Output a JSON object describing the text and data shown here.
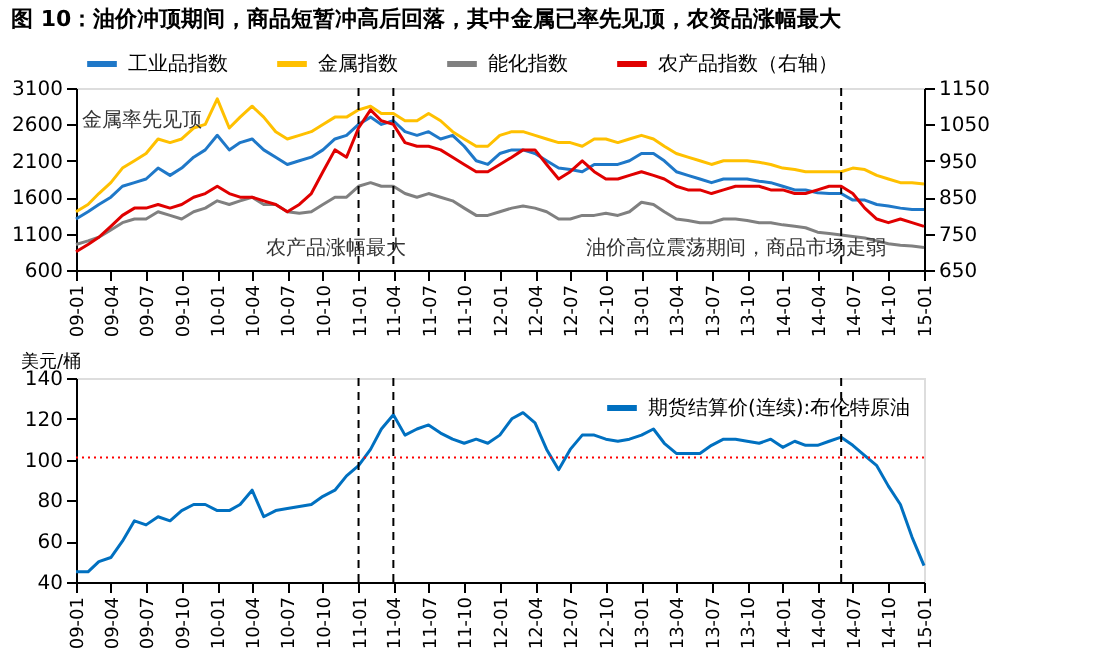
{
  "chart_data": [
    {
      "type": "line",
      "title": "图 10：油价冲顶期间，商品短暂冲高后回落，其中金属已率先见顶，农资品涨幅最大",
      "x": [
        "2009-01",
        "2009-02",
        "2009-03",
        "2009-04",
        "2009-05",
        "2009-06",
        "2009-07",
        "2009-08",
        "2009-09",
        "2009-10",
        "2009-11",
        "2009-12",
        "2010-01",
        "2010-02",
        "2010-03",
        "2010-04",
        "2010-05",
        "2010-06",
        "2010-07",
        "2010-08",
        "2010-09",
        "2010-10",
        "2010-11",
        "2010-12",
        "2011-01",
        "2011-02",
        "2011-03",
        "2011-04",
        "2011-05",
        "2011-06",
        "2011-07",
        "2011-08",
        "2011-09",
        "2011-10",
        "2011-11",
        "2011-12",
        "2012-01",
        "2012-02",
        "2012-03",
        "2012-04",
        "2012-05",
        "2012-06",
        "2012-07",
        "2012-08",
        "2012-09",
        "2012-10",
        "2012-11",
        "2012-12",
        "2013-01",
        "2013-02",
        "2013-03",
        "2013-04",
        "2013-05",
        "2013-06",
        "2013-07",
        "2013-08",
        "2013-09",
        "2013-10",
        "2013-11",
        "2013-12",
        "2014-01",
        "2014-02",
        "2014-03",
        "2014-04",
        "2014-05",
        "2014-06",
        "2014-07",
        "2014-08",
        "2014-09",
        "2014-10",
        "2014-11",
        "2014-12",
        "2015-01"
      ],
      "series": [
        {
          "name": "工业品指数",
          "color": "#1f78c8",
          "values": [
            1300,
            1400,
            1500,
            1600,
            1750,
            1800,
            1850,
            2000,
            1900,
            2000,
            2150,
            2250,
            2450,
            2250,
            2350,
            2400,
            2250,
            2150,
            2050,
            2100,
            2150,
            2250,
            2400,
            2450,
            2600,
            2700,
            2600,
            2650,
            2500,
            2450,
            2500,
            2400,
            2450,
            2300,
            2100,
            2050,
            2200,
            2250,
            2250,
            2200,
            2100,
            2000,
            1980,
            1950,
            2050,
            2050,
            2050,
            2100,
            2200,
            2200,
            2100,
            1950,
            1900,
            1850,
            1800,
            1850,
            1850,
            1850,
            1820,
            1800,
            1750,
            1700,
            1700,
            1660,
            1650,
            1650,
            1560,
            1560,
            1500,
            1480,
            1450,
            1430,
            1430
          ]
        },
        {
          "name": "金属指数",
          "color": "#ffc000",
          "values": [
            1400,
            1500,
            1650,
            1800,
            2000,
            2100,
            2200,
            2400,
            2350,
            2400,
            2550,
            2600,
            2950,
            2550,
            2700,
            2850,
            2700,
            2500,
            2400,
            2450,
            2500,
            2600,
            2700,
            2700,
            2800,
            2850,
            2750,
            2750,
            2650,
            2650,
            2750,
            2650,
            2500,
            2400,
            2300,
            2300,
            2450,
            2500,
            2500,
            2450,
            2400,
            2350,
            2350,
            2300,
            2400,
            2400,
            2350,
            2400,
            2450,
            2400,
            2300,
            2200,
            2150,
            2100,
            2050,
            2100,
            2100,
            2100,
            2080,
            2050,
            2000,
            1980,
            1950,
            1950,
            1950,
            1950,
            2000,
            1980,
            1900,
            1850,
            1800,
            1800,
            1780
          ]
        },
        {
          "name": "能化指数",
          "color": "#808080",
          "values": [
            950,
            1000,
            1050,
            1150,
            1250,
            1300,
            1300,
            1400,
            1350,
            1300,
            1400,
            1450,
            1550,
            1500,
            1550,
            1600,
            1500,
            1500,
            1400,
            1380,
            1400,
            1500,
            1600,
            1600,
            1750,
            1800,
            1750,
            1750,
            1650,
            1600,
            1650,
            1600,
            1550,
            1450,
            1350,
            1350,
            1400,
            1450,
            1480,
            1450,
            1400,
            1300,
            1300,
            1350,
            1350,
            1380,
            1350,
            1400,
            1530,
            1500,
            1400,
            1300,
            1280,
            1250,
            1250,
            1300,
            1300,
            1280,
            1250,
            1250,
            1220,
            1200,
            1180,
            1120,
            1100,
            1080,
            1060,
            1040,
            1000,
            960,
            940,
            930,
            910
          ]
        },
        {
          "name": "农产品指数（右轴）",
          "color": "#e00000",
          "axis": "y2",
          "values": [
            700,
            720,
            740,
            770,
            800,
            820,
            820,
            830,
            820,
            830,
            850,
            860,
            880,
            860,
            850,
            850,
            840,
            830,
            810,
            830,
            860,
            920,
            980,
            960,
            1040,
            1090,
            1060,
            1050,
            1000,
            990,
            990,
            980,
            960,
            940,
            920,
            920,
            940,
            960,
            980,
            980,
            940,
            900,
            920,
            950,
            920,
            900,
            900,
            910,
            920,
            910,
            900,
            880,
            870,
            870,
            860,
            870,
            880,
            880,
            880,
            870,
            870,
            860,
            860,
            870,
            880,
            880,
            860,
            820,
            790,
            780,
            790,
            780,
            770
          ]
        }
      ],
      "xlim": [
        "2009-01",
        "2015-01"
      ],
      "xticks": [
        {
          "value": "2009-01",
          "label": "09-01"
        },
        {
          "value": "2009-04",
          "label": "09-04"
        },
        {
          "value": "2009-07",
          "label": "09-07"
        },
        {
          "value": "2009-10",
          "label": "09-10"
        },
        {
          "value": "2010-01",
          "label": "10-01"
        },
        {
          "value": "2010-04",
          "label": "10-04"
        },
        {
          "value": "2010-07",
          "label": "10-07"
        },
        {
          "value": "2010-10",
          "label": "10-10"
        },
        {
          "value": "2011-01",
          "label": "11-01"
        },
        {
          "value": "2011-04",
          "label": "11-04"
        },
        {
          "value": "2011-07",
          "label": "11-07"
        },
        {
          "value": "2011-10",
          "label": "11-10"
        },
        {
          "value": "2012-01",
          "label": "12-01"
        },
        {
          "value": "2012-04",
          "label": "12-04"
        },
        {
          "value": "2012-07",
          "label": "12-07"
        },
        {
          "value": "2012-10",
          "label": "12-10"
        },
        {
          "value": "2013-01",
          "label": "13-01"
        },
        {
          "value": "2013-04",
          "label": "13-04"
        },
        {
          "value": "2013-07",
          "label": "13-07"
        },
        {
          "value": "2013-10",
          "label": "13-10"
        },
        {
          "value": "2014-01",
          "label": "14-01"
        },
        {
          "value": "2014-04",
          "label": "14-04"
        },
        {
          "value": "2014-07",
          "label": "14-07"
        },
        {
          "value": "2014-10",
          "label": "14-10"
        },
        {
          "value": "2015-01",
          "label": "15-01"
        }
      ],
      "ylim": [
        600,
        3100
      ],
      "yticks": [
        600,
        1100,
        1600,
        2100,
        2600,
        3100
      ],
      "y2lim": [
        650,
        1150
      ],
      "y2ticks": [
        650,
        750,
        850,
        950,
        1050,
        1150
      ],
      "ref_lines": [
        {
          "axis": "x",
          "value": "2011-01",
          "color": "#000000",
          "line_style": "dashed"
        },
        {
          "axis": "x",
          "value": "2011-04",
          "color": "#000000",
          "line_style": "dashed"
        },
        {
          "axis": "x",
          "value": "2014-06",
          "color": "#000000",
          "line_style": "dashed"
        }
      ],
      "annotations": [
        "金属率先见顶",
        "农产品涨幅最大",
        "油价高位震荡期间，商品市场走弱"
      ],
      "legend": "top",
      "grid": false
    },
    {
      "type": "line",
      "ylabel": "美元/桶",
      "x": [
        "2009-01",
        "2009-02",
        "2009-03",
        "2009-04",
        "2009-05",
        "2009-06",
        "2009-07",
        "2009-08",
        "2009-09",
        "2009-10",
        "2009-11",
        "2009-12",
        "2010-01",
        "2010-02",
        "2010-03",
        "2010-04",
        "2010-05",
        "2010-06",
        "2010-07",
        "2010-08",
        "2010-09",
        "2010-10",
        "2010-11",
        "2010-12",
        "2011-01",
        "2011-02",
        "2011-03",
        "2011-04",
        "2011-05",
        "2011-06",
        "2011-07",
        "2011-08",
        "2011-09",
        "2011-10",
        "2011-11",
        "2011-12",
        "2012-01",
        "2012-02",
        "2012-03",
        "2012-04",
        "2012-05",
        "2012-06",
        "2012-07",
        "2012-08",
        "2012-09",
        "2012-10",
        "2012-11",
        "2012-12",
        "2013-01",
        "2013-02",
        "2013-03",
        "2013-04",
        "2013-05",
        "2013-06",
        "2013-07",
        "2013-08",
        "2013-09",
        "2013-10",
        "2013-11",
        "2013-12",
        "2014-01",
        "2014-02",
        "2014-03",
        "2014-04",
        "2014-05",
        "2014-06",
        "2014-07",
        "2014-08",
        "2014-09",
        "2014-10",
        "2014-11",
        "2014-12",
        "2015-01"
      ],
      "series": [
        {
          "name": "期货结算价(连续):布伦特原油",
          "color": "#0070c0",
          "values": [
            45,
            45,
            50,
            52,
            60,
            70,
            68,
            72,
            70,
            75,
            78,
            78,
            75,
            75,
            78,
            85,
            72,
            75,
            76,
            77,
            78,
            82,
            85,
            92,
            97,
            105,
            115,
            122,
            112,
            115,
            117,
            113,
            110,
            108,
            110,
            108,
            112,
            120,
            123,
            118,
            105,
            95,
            105,
            112,
            112,
            110,
            109,
            110,
            112,
            115,
            108,
            103,
            103,
            103,
            107,
            110,
            110,
            109,
            108,
            110,
            106,
            109,
            107,
            107,
            109,
            111,
            107,
            102,
            97,
            87,
            78,
            62,
            48
          ]
        }
      ],
      "xlim": [
        "2009-01",
        "2015-01"
      ],
      "xticks": [
        {
          "value": "2009-01",
          "label": "09-01"
        },
        {
          "value": "2009-04",
          "label": "09-04"
        },
        {
          "value": "2009-07",
          "label": "09-07"
        },
        {
          "value": "2009-10",
          "label": "09-10"
        },
        {
          "value": "2010-01",
          "label": "10-01"
        },
        {
          "value": "2010-04",
          "label": "10-04"
        },
        {
          "value": "2010-07",
          "label": "10-07"
        },
        {
          "value": "2010-10",
          "label": "10-10"
        },
        {
          "value": "2011-01",
          "label": "11-01"
        },
        {
          "value": "2011-04",
          "label": "11-04"
        },
        {
          "value": "2011-07",
          "label": "11-07"
        },
        {
          "value": "2011-10",
          "label": "11-10"
        },
        {
          "value": "2012-01",
          "label": "12-01"
        },
        {
          "value": "2012-04",
          "label": "12-04"
        },
        {
          "value": "2012-07",
          "label": "12-07"
        },
        {
          "value": "2012-10",
          "label": "12-10"
        },
        {
          "value": "2013-01",
          "label": "13-01"
        },
        {
          "value": "2013-04",
          "label": "13-04"
        },
        {
          "value": "2013-07",
          "label": "13-07"
        },
        {
          "value": "2013-10",
          "label": "13-10"
        },
        {
          "value": "2014-01",
          "label": "14-01"
        },
        {
          "value": "2014-04",
          "label": "14-04"
        },
        {
          "value": "2014-07",
          "label": "14-07"
        },
        {
          "value": "2014-10",
          "label": "14-10"
        },
        {
          "value": "2015-01",
          "label": "15-01"
        }
      ],
      "ylim": [
        40,
        140
      ],
      "yticks": [
        40,
        60,
        80,
        100,
        120,
        140
      ],
      "ref_lines": [
        {
          "axis": "x",
          "value": "2011-01",
          "color": "#000000",
          "line_style": "dashed"
        },
        {
          "axis": "x",
          "value": "2011-04",
          "color": "#000000",
          "line_style": "dashed"
        },
        {
          "axis": "x",
          "value": "2014-06",
          "color": "#000000",
          "line_style": "dashed"
        },
        {
          "axis": "y",
          "value": 101,
          "color": "#ff0000",
          "line_style": "dotted"
        }
      ],
      "legend": "top right",
      "grid": false
    }
  ]
}
